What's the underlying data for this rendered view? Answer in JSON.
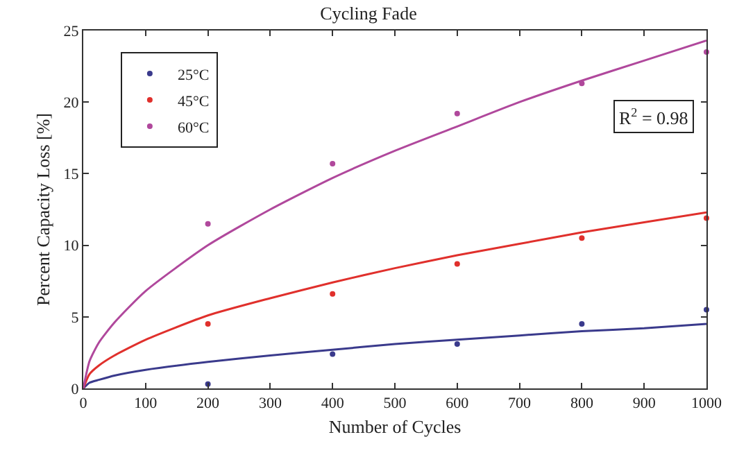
{
  "chart_data": {
    "type": "scatter",
    "title": "Cycling Fade",
    "xlabel": "Number of Cycles",
    "ylabel": "Percent Capacity Loss [%]",
    "x": [
      200,
      400,
      600,
      800,
      1000
    ],
    "series": [
      {
        "name": "25°C",
        "color": "#3a3a8c",
        "marker": "circle",
        "values": [
          0.3,
          2.4,
          3.1,
          4.5,
          5.5
        ]
      },
      {
        "name": "45°C",
        "color": "#e0302c",
        "marker": "circle",
        "values": [
          4.5,
          6.6,
          8.7,
          10.5,
          11.9
        ]
      },
      {
        "name": "60°C",
        "color": "#b0489c",
        "marker": "circle",
        "values": [
          11.5,
          15.7,
          19.2,
          21.3,
          23.5
        ]
      },
      {
        "type": "line",
        "color": "#3a3a8c",
        "marker": "none",
        "x": [
          0,
          10,
          25,
          50,
          100,
          200,
          300,
          400,
          500,
          600,
          700,
          800,
          900,
          1000
        ],
        "values": [
          0,
          0.4,
          0.6,
          0.9,
          1.3,
          1.85,
          2.3,
          2.7,
          3.1,
          3.4,
          3.7,
          4.0,
          4.2,
          4.5
        ]
      },
      {
        "type": "line",
        "color": "#e0302c",
        "marker": "none",
        "x": [
          0,
          10,
          25,
          50,
          100,
          200,
          300,
          400,
          500,
          600,
          700,
          800,
          900,
          1000
        ],
        "values": [
          0,
          1.0,
          1.6,
          2.3,
          3.4,
          5.1,
          6.3,
          7.4,
          8.4,
          9.3,
          10.1,
          10.9,
          11.6,
          12.3
        ]
      },
      {
        "type": "line",
        "color": "#b0489c",
        "marker": "none",
        "x": [
          0,
          10,
          25,
          50,
          100,
          200,
          300,
          400,
          500,
          600,
          700,
          800,
          900,
          1000
        ],
        "values": [
          0,
          1.9,
          3.2,
          4.6,
          6.8,
          10.0,
          12.5,
          14.7,
          16.6,
          18.3,
          20.0,
          21.5,
          22.9,
          24.3
        ]
      }
    ],
    "xlim": [
      0,
      1000
    ],
    "xticks": [
      0,
      100,
      200,
      300,
      400,
      500,
      600,
      700,
      800,
      900,
      1000
    ],
    "ylim": [
      0,
      25
    ],
    "yticks": [
      0,
      5,
      10,
      15,
      20,
      25
    ],
    "annotations": [
      "R$^{2}$ = 0.98"
    ],
    "legend": "top left",
    "line_style": "solid"
  }
}
